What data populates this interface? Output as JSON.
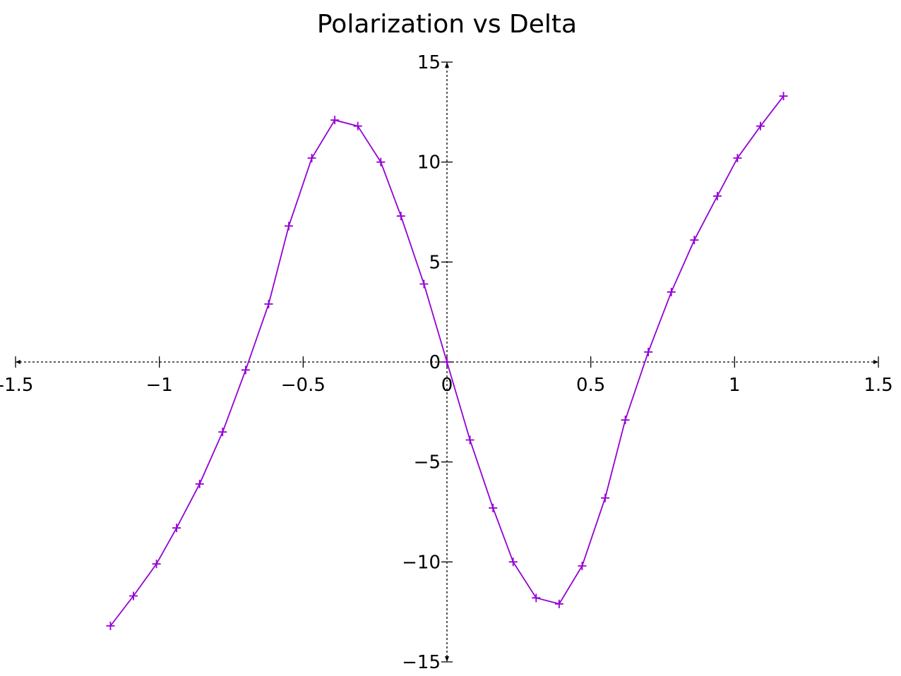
{
  "colors": {
    "series": "#9400d3",
    "axis": "#000000"
  },
  "chart_data": {
    "type": "line",
    "title": "Polarization vs Delta",
    "xlabel": "",
    "ylabel": "",
    "xlim": [
      -1.5,
      1.5
    ],
    "ylim": [
      -15,
      15
    ],
    "grid": false,
    "axes_through_origin": true,
    "x_ticks": [
      -1.5,
      -1,
      -0.5,
      0,
      0.5,
      1,
      1.5
    ],
    "x_tick_labels": [
      "-1.5",
      "−1",
      "−0.5",
      "0",
      "0.5",
      "1",
      "1.5"
    ],
    "y_ticks": [
      15,
      10,
      5,
      0,
      -5,
      -10,
      -15
    ],
    "y_tick_labels": [
      "15",
      "10",
      "5",
      "0",
      "−5",
      "−10",
      "−15"
    ],
    "marker": "plus",
    "series": [
      {
        "x": [
          -1.17,
          -1.09,
          -1.01,
          -0.94,
          -0.86,
          -0.78,
          -0.7,
          -0.62,
          -0.55,
          -0.47,
          -0.39,
          -0.31,
          -0.23,
          -0.16,
          -0.08,
          0.0,
          0.08,
          0.16,
          0.23,
          0.31,
          0.39,
          0.47,
          0.55,
          0.62,
          0.7,
          0.78,
          0.86,
          0.94,
          1.01,
          1.09,
          1.17
        ],
        "y": [
          -13.2,
          -11.7,
          -10.1,
          -8.3,
          -6.1,
          -3.5,
          -0.4,
          2.9,
          6.8,
          10.2,
          12.1,
          11.8,
          10.0,
          7.3,
          3.9,
          0.0,
          -3.9,
          -7.3,
          -10.0,
          -11.8,
          -12.1,
          -10.2,
          -6.8,
          -2.9,
          0.5,
          3.5,
          6.1,
          8.3,
          10.2,
          11.8,
          13.3
        ]
      }
    ]
  }
}
